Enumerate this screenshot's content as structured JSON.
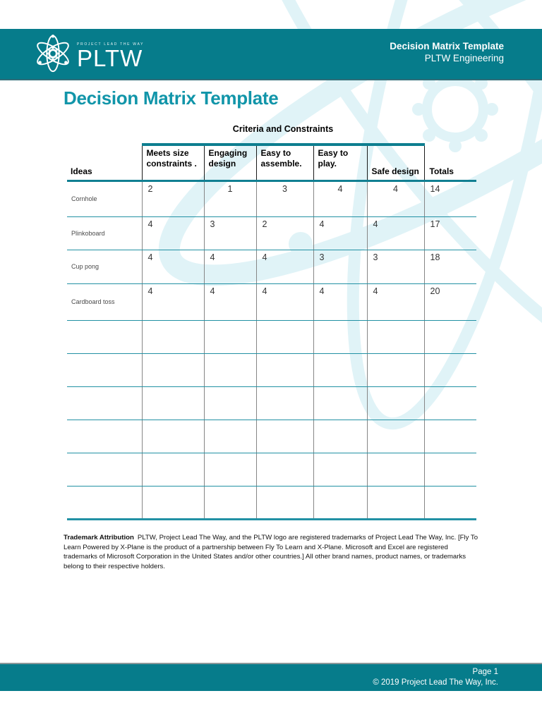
{
  "header": {
    "logo_tagline": "PROJECT LEAD THE WAY",
    "logo_brand": "PLTW",
    "doc_title": "Decision Matrix Template",
    "program": "PLTW Engineering"
  },
  "body": {
    "title": "Decision Matrix Template"
  },
  "table": {
    "caption": "Criteria and Constraints",
    "ideas_header": "Ideas",
    "criteria_headers": [
      "Meets size constraints .",
      "Engaging design",
      "Easy to assemble.",
      "Easy to play.",
      "Safe design"
    ],
    "totals_header": "Totals",
    "rows": [
      {
        "idea": "Cornhole",
        "scores": [
          "2",
          "1",
          "3",
          "4",
          "4"
        ],
        "scores_align": [
          "left",
          "center",
          "center",
          "center",
          "center"
        ],
        "total": "14"
      },
      {
        "idea": "Plinkoboard",
        "scores": [
          "4",
          "3",
          "2",
          "4",
          "4"
        ],
        "scores_align": [
          "left",
          "left",
          "left",
          "left",
          "left"
        ],
        "total": "17"
      },
      {
        "idea": "Cup pong",
        "scores": [
          "4",
          "4",
          "4",
          "3",
          "3"
        ],
        "scores_align": [
          "left",
          "left",
          "left",
          "left",
          "left"
        ],
        "total": "18"
      },
      {
        "idea": "Cardboard toss",
        "scores": [
          "4",
          "4",
          "4",
          "4",
          "4"
        ],
        "scores_align": [
          "left",
          "left",
          "left",
          "left",
          "left"
        ],
        "total": "20"
      }
    ],
    "empty_row_count": 6
  },
  "trademark": {
    "label": "Trademark Attribution",
    "text": "PLTW, Project Lead The Way, and the PLTW logo are registered trademarks of Project Lead The Way, Inc. [Fly To Learn Powered by X-Plane is the product of a partnership between Fly To Learn and X-Plane. Microsoft and Excel are registered trademarks of Microsoft Corporation in the United States and/or other countries.] All other brand names, product names, or trademarks belong to their respective holders."
  },
  "footer": {
    "page_label": "Page 1",
    "copyright": "© 2019 Project Lead The Way, Inc."
  },
  "icons": [
    "atom-icon",
    "pltw-atom-watermark-icon"
  ],
  "colors": {
    "teal_bar": "#067c8b",
    "title_teal": "#1195a9",
    "table_thin_line": "#2291a4",
    "table_thick_line": "#0d7e8f",
    "header_cell_border": "#1a1a1a",
    "body_cell_border": "#868686",
    "watermark": "#e0f3f7",
    "text_white": "#ffffff"
  }
}
